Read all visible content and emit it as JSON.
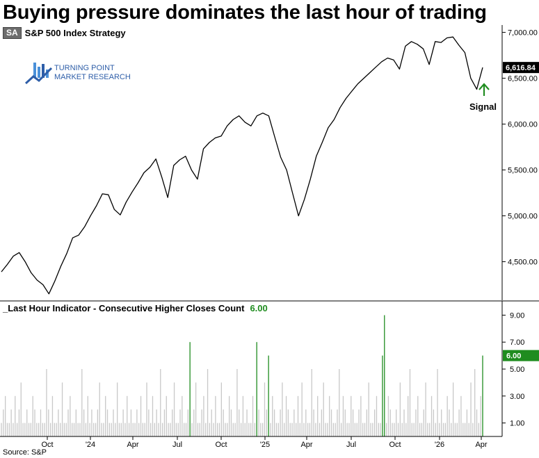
{
  "title": "Buying pressure dominates the last hour of trading",
  "legend_top": {
    "badge": "SA",
    "label": "S&P 500 Index  Strategy"
  },
  "legend_bottom": {
    "label": "_Last Hour Indicator - Consecutive Higher Closes Count",
    "value": "6.00"
  },
  "logo": {
    "line1": "TURNING POINT",
    "line2": "MARKET RESEARCH"
  },
  "annotation": "Signal",
  "source": "Source: S&P",
  "colors": {
    "price_line": "#000000",
    "bar_normal": "#c8c8c8",
    "bar_signal": "#1f8c1f",
    "last_price_box": "#000000",
    "last_indicator_box": "#1f8c1f"
  },
  "chart_data": [
    {
      "type": "line",
      "series": [
        {
          "values": [
            4390,
            4470,
            4560,
            4600,
            4500,
            4380,
            4300,
            4250,
            4150,
            4290,
            4450,
            4590,
            4760,
            4790,
            4880,
            5000,
            5110,
            5240,
            5230,
            5070,
            5010,
            5150,
            5260,
            5360,
            5470,
            5530,
            5620,
            5420,
            5200,
            5550,
            5610,
            5650,
            5500,
            5400,
            5730,
            5800,
            5850,
            5870,
            5980,
            6050,
            6090,
            6020,
            5980,
            6090,
            6120,
            6090,
            5860,
            5640,
            5500,
            5250,
            5000,
            5180,
            5400,
            5650,
            5800,
            5960,
            6050,
            6180,
            6280,
            6360,
            6440,
            6500,
            6560,
            6620,
            6680,
            6720,
            6700,
            6600,
            6850,
            6900,
            6870,
            6820,
            6650,
            6900,
            6890,
            6940,
            6950,
            6860,
            6780,
            6500,
            6380,
            6616.84
          ]
        }
      ],
      "x_tick_labels": [
        "Oct",
        "'24",
        "Apr",
        "Jul",
        "Oct",
        "'25",
        "Apr",
        "Jul",
        "Oct",
        "'26",
        "Apr"
      ],
      "y_tick_labels": [
        "4,500.00",
        "5,000.00",
        "5,500.00",
        "6,000.00",
        "6,500.00",
        "7,000.00"
      ],
      "ylim": [
        4080,
        7080
      ],
      "last_value_label": "6,616.84"
    },
    {
      "type": "bar",
      "series": [
        {
          "values": [
            1,
            2,
            3,
            1,
            1,
            2,
            1,
            3,
            1,
            2,
            4,
            1,
            1,
            2,
            1,
            1,
            3,
            2,
            1,
            1,
            2,
            1,
            1,
            5,
            2,
            1,
            3,
            1,
            1,
            2,
            1,
            4,
            1,
            1,
            2,
            3,
            1,
            1,
            2,
            1,
            1,
            5,
            2,
            1,
            3,
            1,
            2,
            1,
            1,
            2,
            4,
            1,
            1,
            3,
            2,
            1,
            1,
            2,
            1,
            4,
            1,
            1,
            2,
            1,
            3,
            1,
            2,
            1,
            1,
            2,
            1,
            3,
            1,
            1,
            4,
            2,
            1,
            3,
            1,
            2,
            1,
            5,
            1,
            2,
            3,
            1,
            1,
            2,
            4,
            1,
            1,
            2,
            3,
            1,
            1,
            2,
            7,
            1,
            2,
            4,
            1,
            1,
            2,
            3,
            1,
            5,
            1,
            2,
            1,
            3,
            1,
            1,
            4,
            2,
            1,
            1,
            3,
            2,
            1,
            1,
            5,
            2,
            1,
            3,
            1,
            2,
            1,
            1,
            3,
            1,
            7,
            2,
            1,
            1,
            4,
            2,
            6,
            1,
            3,
            2,
            1,
            1,
            2,
            4,
            1,
            3,
            2,
            1,
            1,
            2,
            1,
            3,
            1,
            4,
            1,
            2,
            1,
            1,
            5,
            2,
            1,
            3,
            1,
            2,
            4,
            1,
            1,
            3,
            2,
            1,
            1,
            2,
            5,
            1,
            3,
            2,
            1,
            1,
            3,
            2,
            1,
            1,
            2,
            3,
            1,
            1,
            2,
            4,
            1,
            1,
            2,
            3,
            1,
            1,
            6,
            9,
            1,
            3,
            2,
            1,
            1,
            2,
            1,
            4,
            1,
            2,
            1,
            3,
            5,
            1,
            1,
            2,
            3,
            1,
            1,
            2,
            4,
            1,
            1,
            3,
            2,
            1,
            5,
            1,
            2,
            1,
            1,
            3,
            2,
            1,
            4,
            1,
            1,
            2,
            3,
            1,
            1,
            2,
            1,
            4,
            1,
            5,
            2,
            1,
            3,
            6
          ]
        }
      ],
      "signal_threshold": 6,
      "x_tick_labels": [
        "Oct",
        "'24",
        "Apr",
        "Jul",
        "Oct",
        "'25",
        "Apr",
        "Jul",
        "Oct",
        "'26",
        "Apr"
      ],
      "y_tick_labels": [
        "1.00",
        "3.00",
        "5.00",
        "7.00",
        "9.00"
      ],
      "ylim": [
        0,
        9.9
      ],
      "last_value_label": "6.00"
    }
  ]
}
